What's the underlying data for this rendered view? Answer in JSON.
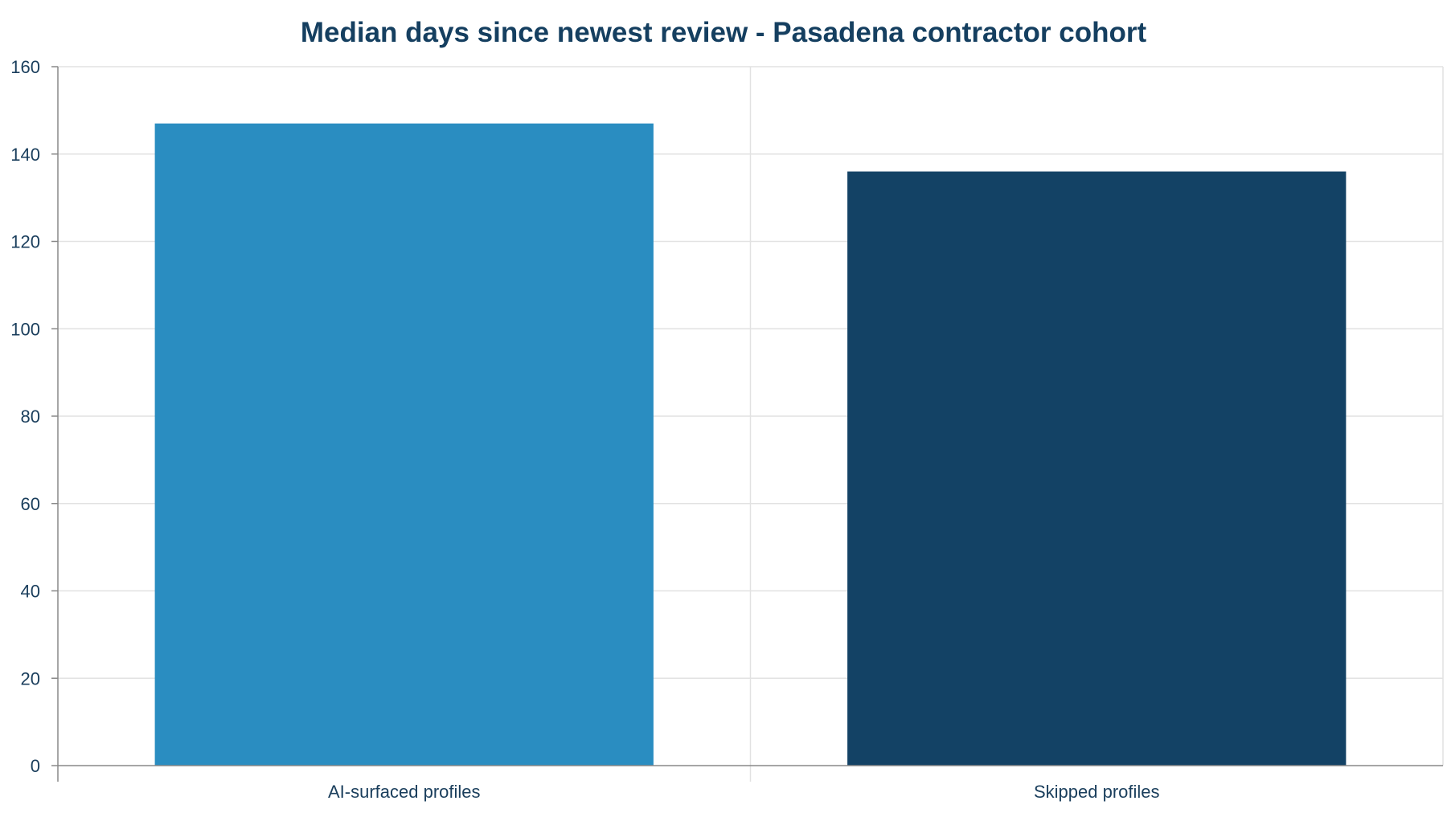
{
  "chart_data": {
    "type": "bar",
    "title": "Median days since newest review - Pasadena contractor cohort",
    "xlabel": "",
    "ylabel": "",
    "categories": [
      "AI-surfaced profiles",
      "Skipped profiles"
    ],
    "values": [
      147,
      136
    ],
    "ylim": [
      0,
      160
    ],
    "yticks": [
      0,
      20,
      40,
      60,
      80,
      100,
      120,
      140,
      160
    ],
    "grid": true,
    "legend": "none",
    "colors": {
      "bars": [
        "#2A8DC1",
        "#134265"
      ],
      "text": "#1A3E5C",
      "title": "#153F60",
      "grid": "#E2E2E2",
      "axis": "#888888"
    }
  }
}
